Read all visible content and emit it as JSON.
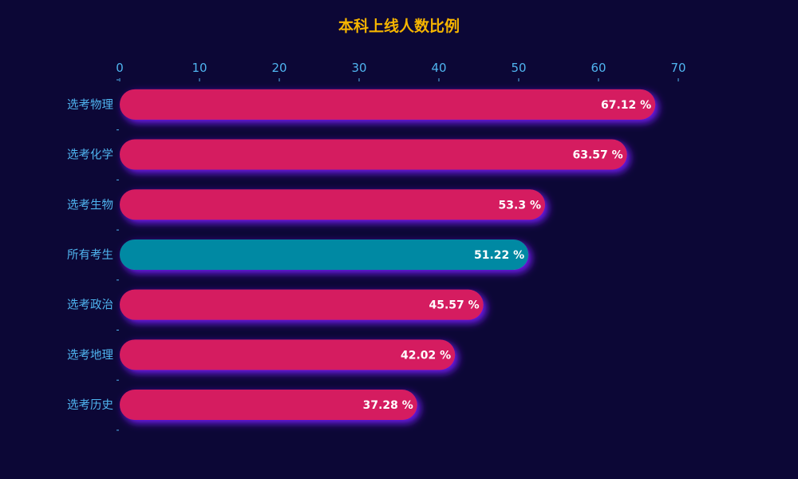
{
  "colors": {
    "background": "#0c0736",
    "title": "#f5b400",
    "axis_text": "#4fb4ef",
    "bar_default": "#d51b61",
    "bar_highlight": "#0289a3",
    "bar_glow": "#7a1cff",
    "value_text": "#ffffff"
  },
  "chart_data": {
    "type": "bar",
    "orientation": "horizontal",
    "title": "本科上线人数比例",
    "categories": [
      "选考物理",
      "选考化学",
      "选考生物",
      "所有考生",
      "选考政治",
      "选考地理",
      "选考历史"
    ],
    "values": [
      67.12,
      63.57,
      53.3,
      51.22,
      45.57,
      42.02,
      37.28
    ],
    "value_labels": [
      "67.12 %",
      "63.57 %",
      "53.3 %",
      "51.22 %",
      "45.57 %",
      "42.02 %",
      "37.28 %"
    ],
    "highlight_category": "所有考生",
    "xaxis": {
      "position": "top",
      "ticks": [
        "0",
        "10",
        "20",
        "30",
        "40",
        "50",
        "60",
        "70"
      ],
      "xlim": [
        0,
        70
      ]
    },
    "xlabel": "",
    "ylabel": "",
    "grid": false,
    "legend": "none"
  }
}
